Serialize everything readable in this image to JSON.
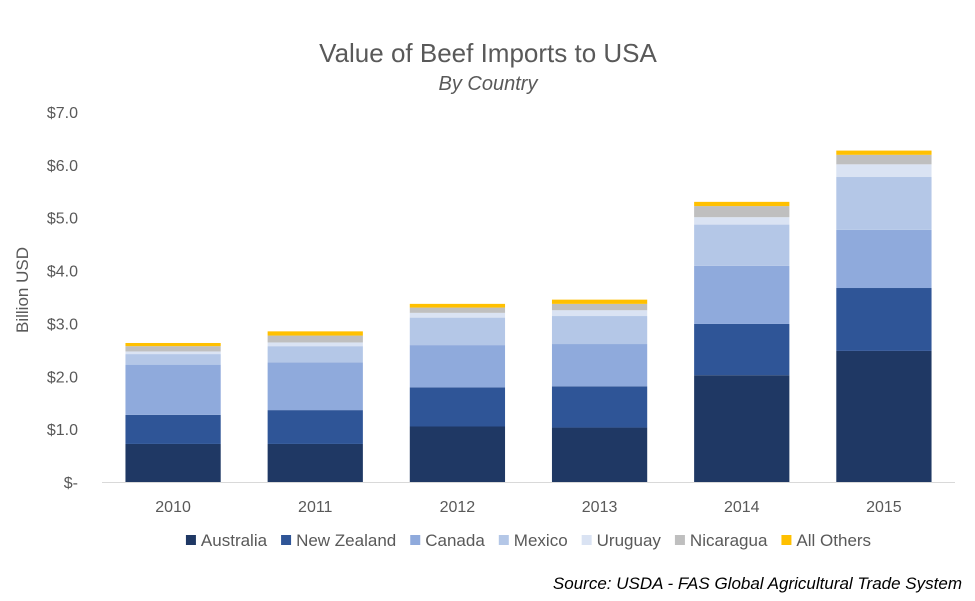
{
  "chart_data": {
    "type": "bar",
    "stacked": true,
    "title": "Value of Beef Imports to USA",
    "subtitle": "By Country",
    "ylabel": "Billion USD",
    "xlabel": "",
    "ylim": [
      0,
      7
    ],
    "y_ticks": [
      {
        "value": 0,
        "label": "$-"
      },
      {
        "value": 1,
        "label": "$1.0"
      },
      {
        "value": 2,
        "label": "$2.0"
      },
      {
        "value": 3,
        "label": "$3.0"
      },
      {
        "value": 4,
        "label": "$4.0"
      },
      {
        "value": 5,
        "label": "$5.0"
      },
      {
        "value": 6,
        "label": "$6.0"
      },
      {
        "value": 7,
        "label": "$7.0"
      }
    ],
    "categories": [
      "2010",
      "2011",
      "2012",
      "2013",
      "2014",
      "2015"
    ],
    "series": [
      {
        "name": "Australia",
        "color": "#1f3864",
        "values": [
          0.72,
          0.72,
          1.05,
          1.03,
          2.02,
          2.48
        ]
      },
      {
        "name": "New Zealand",
        "color": "#2f5597",
        "values": [
          0.55,
          0.64,
          0.74,
          0.78,
          0.97,
          1.19
        ]
      },
      {
        "name": "Canada",
        "color": "#8faadc",
        "values": [
          0.95,
          0.9,
          0.8,
          0.8,
          1.1,
          1.1
        ]
      },
      {
        "name": "Mexico",
        "color": "#b4c7e7",
        "values": [
          0.2,
          0.31,
          0.52,
          0.53,
          0.78,
          1.0
        ]
      },
      {
        "name": "Uruguay",
        "color": "#dae3f3",
        "values": [
          0.05,
          0.07,
          0.09,
          0.11,
          0.14,
          0.24
        ]
      },
      {
        "name": "Nicaragua",
        "color": "#bfbfbf",
        "values": [
          0.1,
          0.13,
          0.1,
          0.12,
          0.21,
          0.18
        ]
      },
      {
        "name": "All Others",
        "color": "#ffc000",
        "values": [
          0.06,
          0.08,
          0.07,
          0.08,
          0.08,
          0.08
        ]
      }
    ],
    "legend_position": "bottom",
    "grid": false,
    "source": "Source: USDA - FAS Global Agricultural Trade System"
  }
}
